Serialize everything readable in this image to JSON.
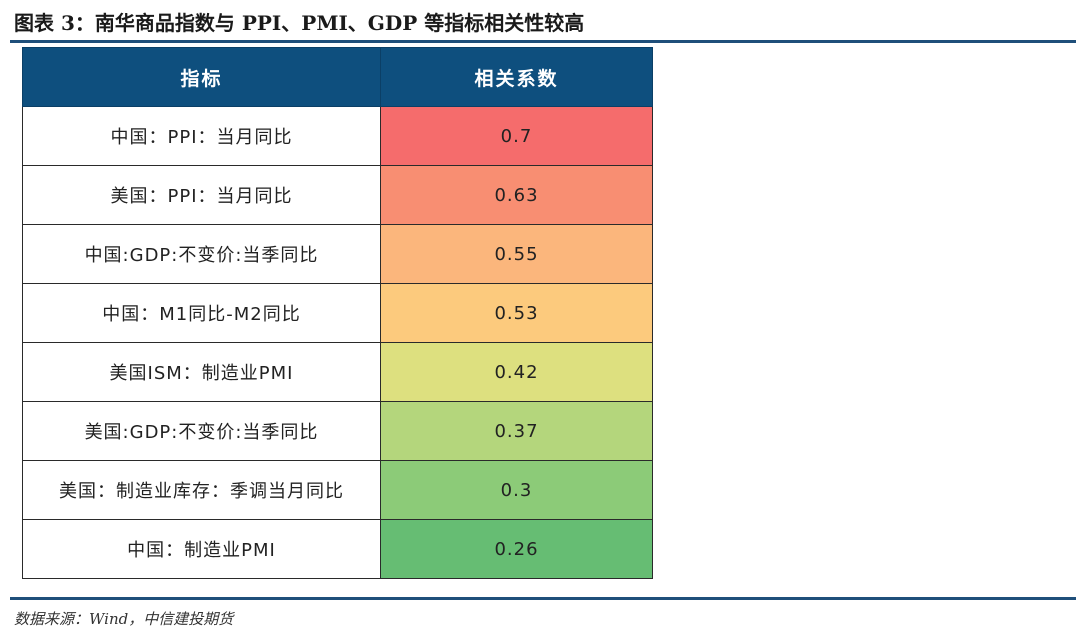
{
  "figure": {
    "title": "图表 3：南华商品指数与 PPI、PMI、GDP 等指标相关性较高",
    "source": "数据来源：Wind，中信建投期货"
  },
  "table": {
    "headers": [
      "指标",
      "相关系数"
    ],
    "rows": [
      {
        "name": "中国：PPI：当月同比",
        "value": "0.7",
        "color": "#f56c6c"
      },
      {
        "name": "美国：PPI：当月同比",
        "value": "0.63",
        "color": "#f88e72"
      },
      {
        "name": "中国:GDP:不变价:当季同比",
        "value": "0.55",
        "color": "#fbb67c"
      },
      {
        "name": "中国：M1同比-M2同比",
        "value": "0.53",
        "color": "#fcca7d"
      },
      {
        "name": "美国ISM：制造业PMI",
        "value": "0.42",
        "color": "#dde07f"
      },
      {
        "name": "美国:GDP:不变价:当季同比",
        "value": "0.37",
        "color": "#b4d67c"
      },
      {
        "name": "美国：制造业库存：季调当月同比",
        "value": "0.3",
        "color": "#8ccb78"
      },
      {
        "name": "中国：制造业PMI",
        "value": "0.26",
        "color": "#66bd73"
      }
    ]
  }
}
